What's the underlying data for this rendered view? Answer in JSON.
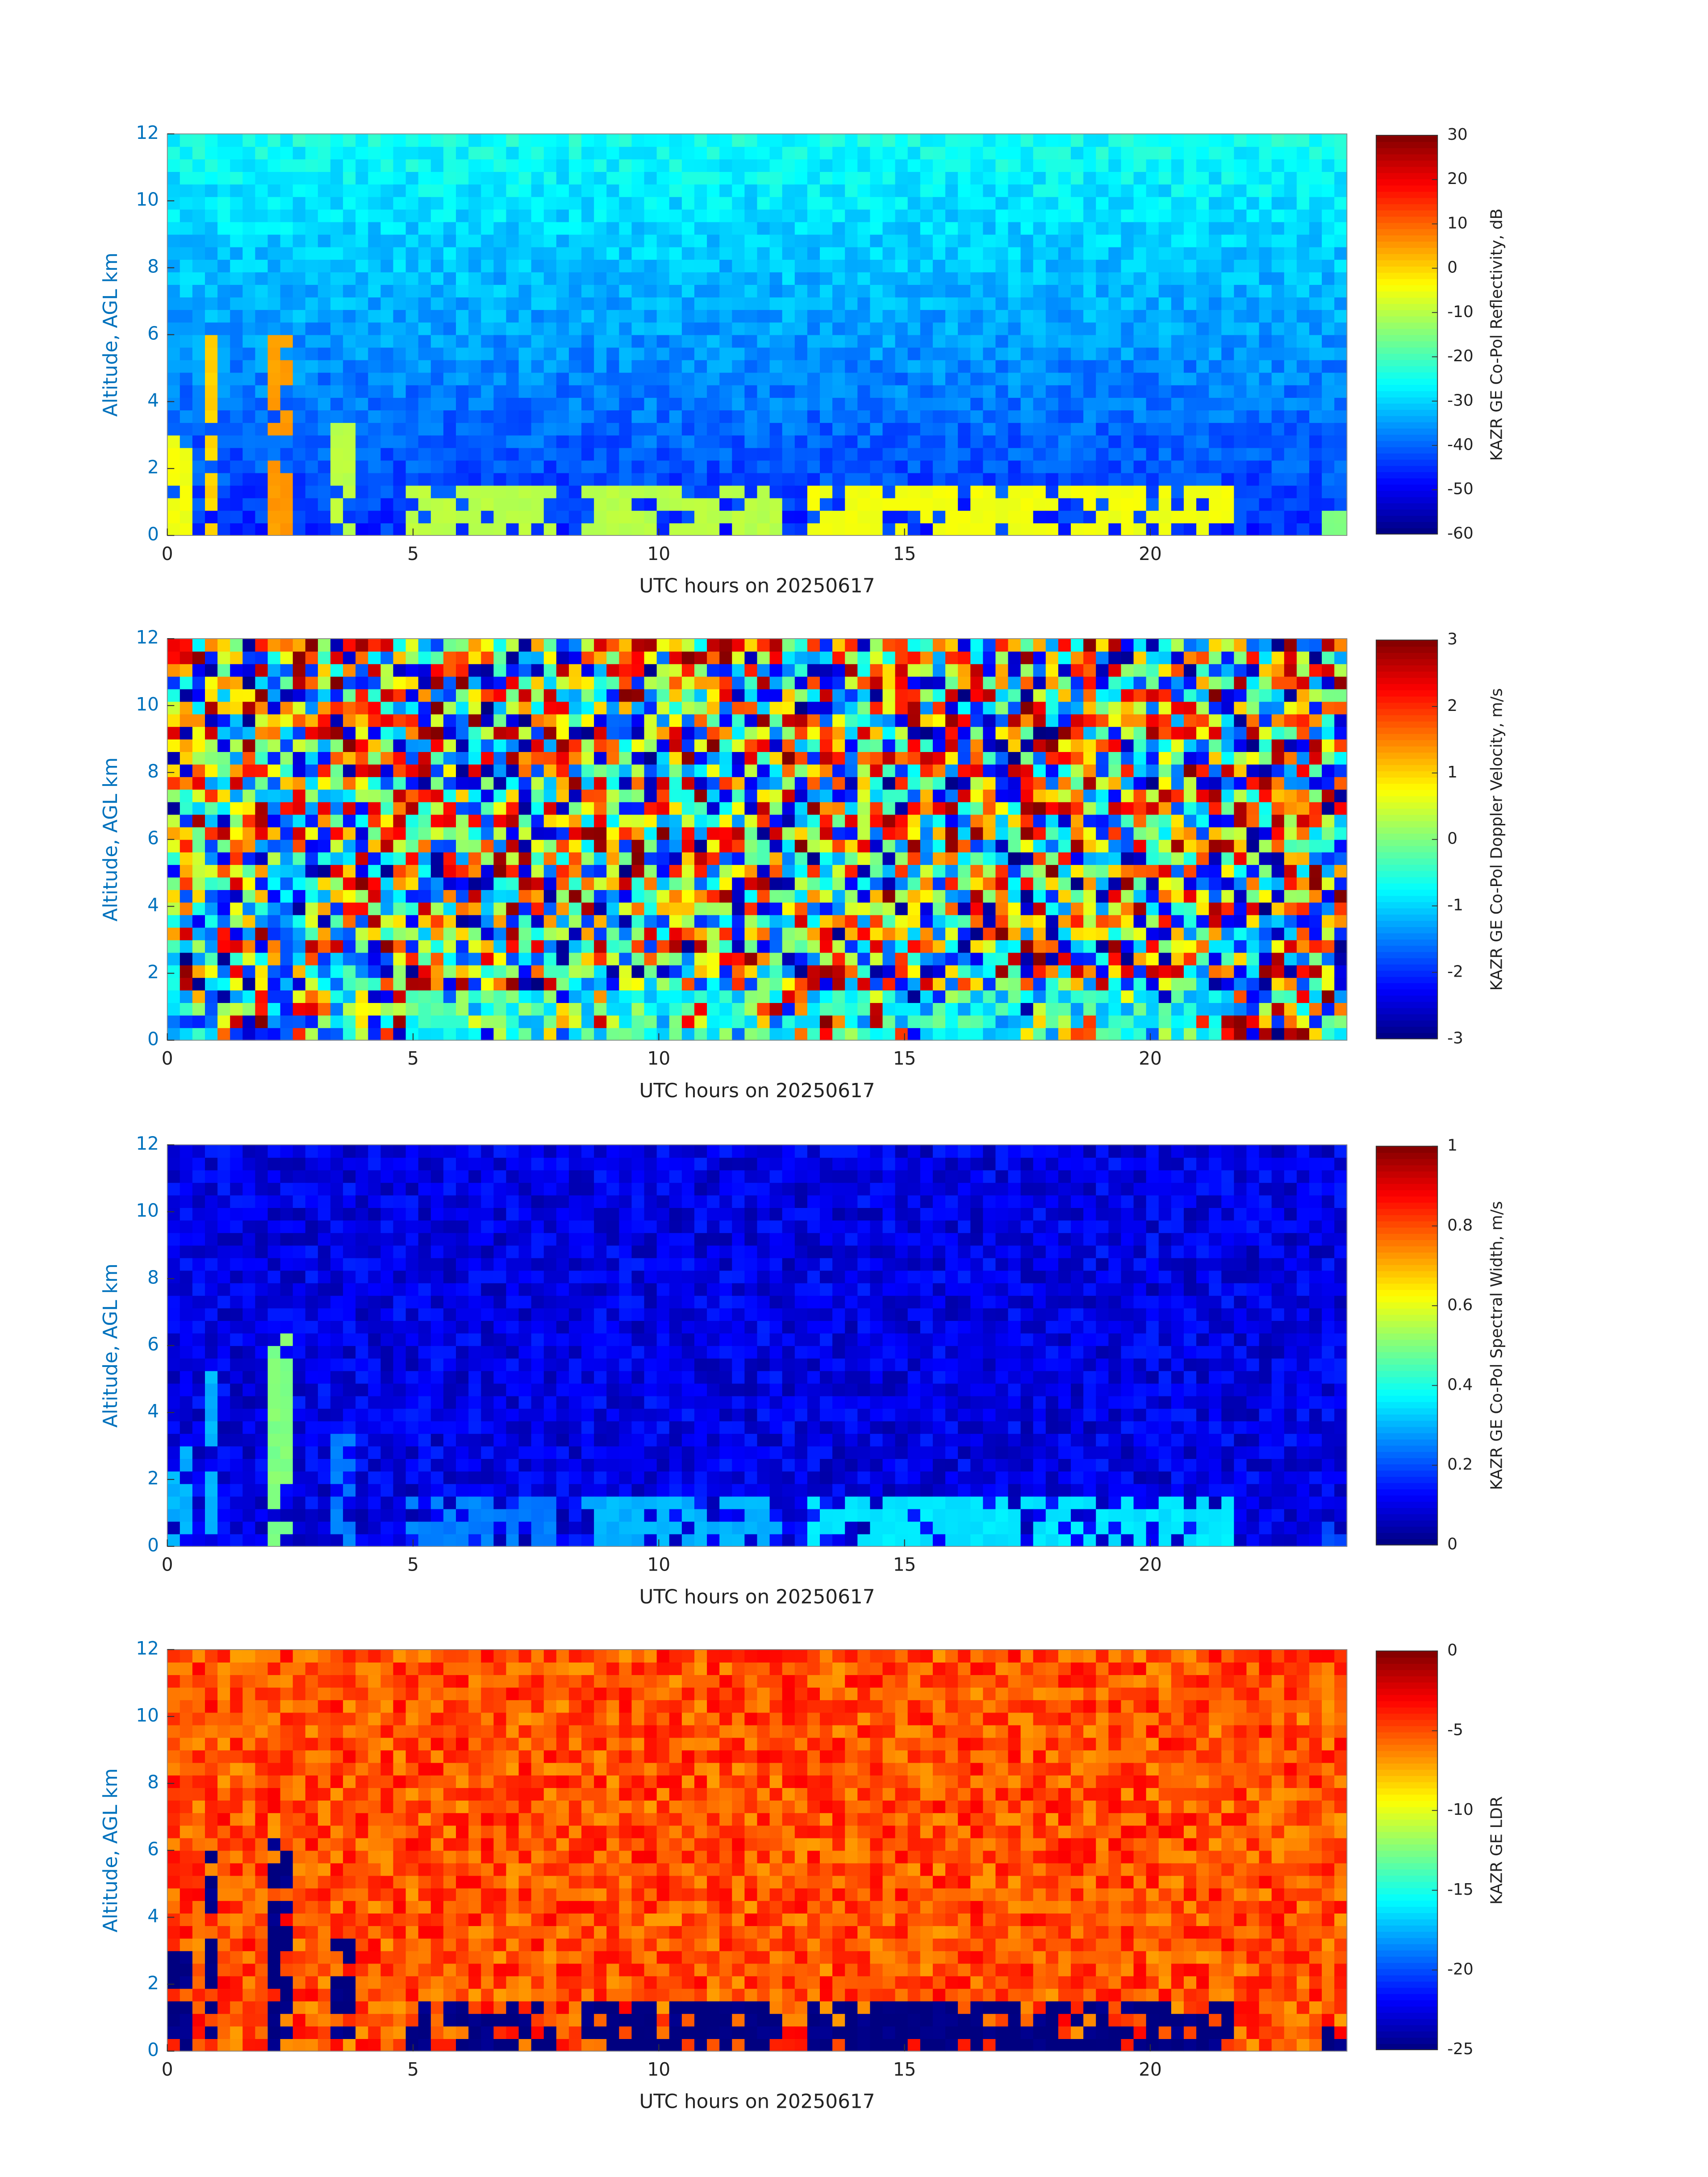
{
  "chart_data": [
    {
      "type": "heatmap",
      "xlabel": "UTC hours on 20250617",
      "ylabel": "Altitude, AGL km",
      "colorbar_label": "KAZR GE Co-Pol Reflectivity, dB",
      "xlim": [
        0,
        24
      ],
      "xticks": [
        0,
        5,
        10,
        15,
        20
      ],
      "ylim": [
        0,
        12
      ],
      "yticks": [
        0,
        2,
        4,
        6,
        8,
        10,
        12
      ],
      "clim": [
        -60,
        30
      ],
      "cticks": [
        -60,
        -50,
        -40,
        -30,
        -20,
        -10,
        0,
        10,
        20,
        30
      ],
      "colormap": "jet",
      "background": [
        -45,
        -25
      ],
      "noise": 4,
      "clouds": [
        {
          "x": [
            0.1,
            0.5
          ],
          "top": 3,
          "value": -5
        },
        {
          "x": [
            0.8,
            1.1
          ],
          "top": 6,
          "value": 0
        },
        {
          "x": [
            2.1,
            2.6
          ],
          "top": 6.5,
          "value": 5
        },
        {
          "x": [
            3.4,
            3.8
          ],
          "top": 3.3,
          "value": -10
        },
        {
          "x": [
            4.8,
            8
          ],
          "top": 1.5,
          "value": -10
        },
        {
          "x": [
            8.3,
            12.5
          ],
          "top": 1.5,
          "value": -10
        },
        {
          "x": [
            13,
            21.8
          ],
          "top": 1.4,
          "value": -5
        },
        {
          "x": [
            23.5,
            24
          ],
          "top": 0.8,
          "value": -15
        }
      ]
    },
    {
      "type": "heatmap",
      "xlabel": "UTC hours on 20250617",
      "ylabel": "Altitude, AGL km",
      "colorbar_label": "KAZR GE Co-Pol Doppler Velocity, m/s",
      "xlim": [
        0,
        24
      ],
      "xticks": [
        0,
        5,
        10,
        15,
        20
      ],
      "ylim": [
        0,
        12
      ],
      "yticks": [
        0,
        2,
        4,
        6,
        8,
        10,
        12
      ],
      "clim": [
        -3,
        3
      ],
      "cticks": [
        -3,
        -2,
        -1,
        0,
        1,
        2,
        3
      ],
      "colormap": "jet",
      "background": [
        0,
        0
      ],
      "noise": 3,
      "clouds": [
        {
          "x": [
            0.1,
            0.5
          ],
          "top": 3,
          "value": -1
        },
        {
          "x": [
            0.8,
            1.1
          ],
          "top": 6,
          "value": -1.2
        },
        {
          "x": [
            2.1,
            2.6
          ],
          "top": 6.5,
          "value": -1.5
        },
        {
          "x": [
            3.4,
            3.8
          ],
          "top": 3.3,
          "value": -1
        },
        {
          "x": [
            4.8,
            8
          ],
          "top": 1.5,
          "value": -0.5
        },
        {
          "x": [
            8.3,
            12.5
          ],
          "top": 1.5,
          "value": -0.5
        },
        {
          "x": [
            13,
            21.8
          ],
          "top": 1.4,
          "value": -0.8
        },
        {
          "x": [
            23.5,
            24
          ],
          "top": 0.8,
          "value": -0.3
        }
      ]
    },
    {
      "type": "heatmap",
      "xlabel": "UTC hours on 20250617",
      "ylabel": "Altitude, AGL km",
      "colorbar_label": "KAZR GE Co-Pol Spectral Width, m/s",
      "xlim": [
        0,
        24
      ],
      "xticks": [
        0,
        5,
        10,
        15,
        20
      ],
      "ylim": [
        0,
        12
      ],
      "yticks": [
        0,
        2,
        4,
        6,
        8,
        10,
        12
      ],
      "clim": [
        0,
        1
      ],
      "cticks": [
        0,
        0.2,
        0.4,
        0.6,
        0.8,
        1
      ],
      "colormap": "jet",
      "background": [
        0.1,
        0.1
      ],
      "noise": 0.06,
      "clouds": [
        {
          "x": [
            0.1,
            0.5
          ],
          "top": 3,
          "value": 0.3
        },
        {
          "x": [
            0.8,
            1.1
          ],
          "top": 6,
          "value": 0.3
        },
        {
          "x": [
            2.1,
            2.6
          ],
          "top": 6.5,
          "value": 0.5
        },
        {
          "x": [
            3.4,
            3.8
          ],
          "top": 3.3,
          "value": 0.25
        },
        {
          "x": [
            4.8,
            8
          ],
          "top": 1.5,
          "value": 0.25
        },
        {
          "x": [
            8.3,
            12.5
          ],
          "top": 1.5,
          "value": 0.3
        },
        {
          "x": [
            13,
            21.8
          ],
          "top": 1.4,
          "value": 0.35
        },
        {
          "x": [
            23.5,
            24
          ],
          "top": 0.8,
          "value": 0.2
        }
      ]
    },
    {
      "type": "heatmap",
      "xlabel": "UTC hours on 20250617",
      "ylabel": "Altitude, AGL km",
      "colorbar_label": "KAZR GE LDR",
      "xlim": [
        0,
        24
      ],
      "xticks": [
        0,
        5,
        10,
        15,
        20
      ],
      "ylim": [
        0,
        12
      ],
      "yticks": [
        0,
        2,
        4,
        6,
        8,
        10,
        12
      ],
      "clim": [
        -25,
        0
      ],
      "cticks": [
        -25,
        -20,
        -15,
        -10,
        -5,
        0
      ],
      "colormap": "jet",
      "background": [
        -5,
        -5
      ],
      "noise": 2,
      "clouds": [
        {
          "x": [
            0.1,
            0.5
          ],
          "top": 3,
          "value": -25
        },
        {
          "x": [
            0.8,
            1.1
          ],
          "top": 6,
          "value": -25
        },
        {
          "x": [
            2.1,
            2.6
          ],
          "top": 6.5,
          "value": -25
        },
        {
          "x": [
            3.4,
            3.8
          ],
          "top": 3.3,
          "value": -25
        },
        {
          "x": [
            4.8,
            8
          ],
          "top": 1.5,
          "value": -25
        },
        {
          "x": [
            8.3,
            12.5
          ],
          "top": 1.5,
          "value": -25
        },
        {
          "x": [
            13,
            21.8
          ],
          "top": 1.4,
          "value": -25
        },
        {
          "x": [
            23.5,
            24
          ],
          "top": 0.8,
          "value": -25
        }
      ]
    }
  ]
}
